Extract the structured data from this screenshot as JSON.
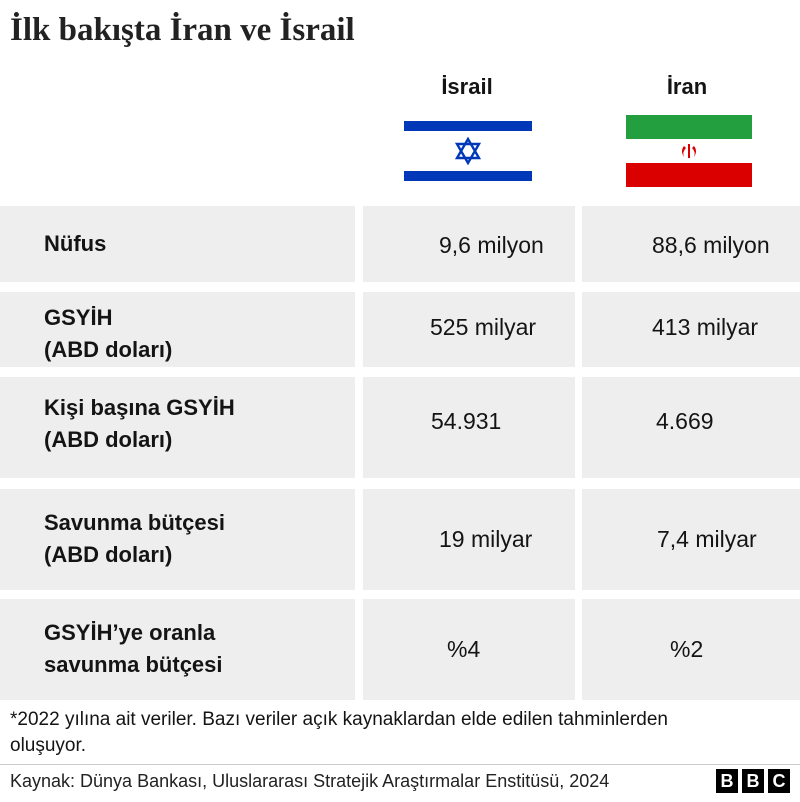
{
  "title": "İlk bakışta İran ve İsrail",
  "columns": {
    "israel": "İsrail",
    "iran": "İran"
  },
  "flags": {
    "israel_icon": "israel-flag-icon",
    "iran_icon": "iran-flag-icon",
    "israel_colors": [
      "#0038b8",
      "#ffffff"
    ],
    "iran_colors": [
      "#239f40",
      "#ffffff",
      "#da0000"
    ]
  },
  "chart_data": {
    "type": "table",
    "columns": [
      "İsrail",
      "İran"
    ],
    "rows": [
      {
        "label": "Nüfus",
        "israel": "9,6 milyon",
        "iran": "88,6 milyon"
      },
      {
        "label": "GSYİH\n(ABD doları)",
        "israel": "525 milyar",
        "iran": "413 milyar"
      },
      {
        "label": "Kişi başına GSYİH\n(ABD doları)",
        "israel": "54.931",
        "iran": "4.669"
      },
      {
        "label": "Savunma bütçesi\n(ABD doları)",
        "israel": "19 milyar",
        "iran": "7,4 milyar"
      },
      {
        "label": "GSYİH’ye oranla\nsavunma bütçesi",
        "israel": "%4",
        "iran": "%2"
      }
    ]
  },
  "note": "*2022 yılına ait veriler. Bazı veriler açık kaynaklardan elde edilen tahminlerden oluşuyor.",
  "source": "Kaynak: Dünya Bankası, Uluslararası Stratejik Araştırmalar Enstitüsü, 2024",
  "logo": [
    "B",
    "B",
    "C"
  ]
}
